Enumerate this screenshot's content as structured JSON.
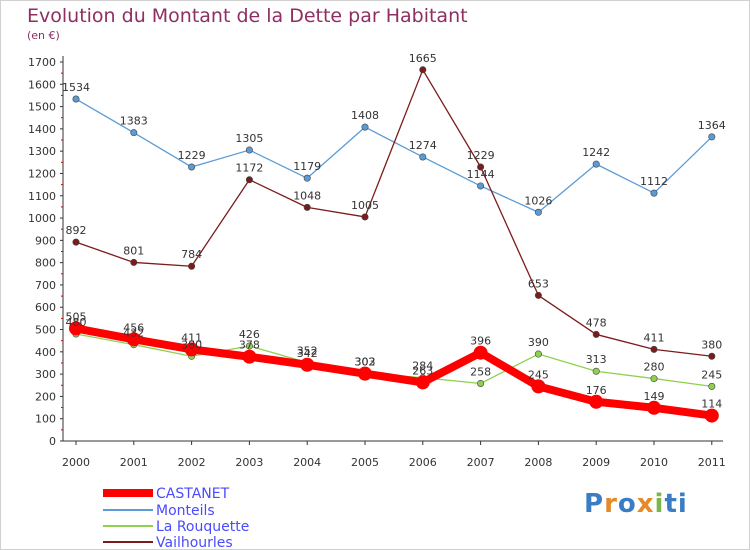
{
  "title": "Evolution du Montant de la Dette par Habitant",
  "subtitle": "(en €)",
  "logo": "Proxiti",
  "chart_data": {
    "type": "line",
    "title": "Evolution du Montant de la Dette par Habitant",
    "ylabel": "(en €)",
    "x": [
      "2000",
      "2001",
      "2002",
      "2003",
      "2004",
      "2005",
      "2006",
      "2007",
      "2008",
      "2009",
      "2010",
      "2011"
    ],
    "ylim": [
      0,
      1700
    ],
    "yticks": [
      0,
      100,
      200,
      300,
      400,
      500,
      600,
      700,
      800,
      900,
      1000,
      1100,
      1200,
      1300,
      1400,
      1500,
      1600,
      1700
    ],
    "grid": false,
    "legend_position": "bottom-left",
    "series": [
      {
        "name": "CASTANET",
        "color": "#ff0000",
        "values": [
          505,
          456,
          411,
          378,
          342,
          302,
          263,
          396,
          245,
          176,
          149,
          114
        ]
      },
      {
        "name": "Monteils",
        "color": "#5b9bd5",
        "values": [
          1534,
          1383,
          1229,
          1305,
          1179,
          1408,
          1274,
          1144,
          1026,
          1242,
          1112,
          1364
        ]
      },
      {
        "name": "La Rouquette",
        "color": "#8fd14f",
        "values": [
          480,
          432,
          380,
          426,
          352,
          303,
          284,
          258,
          390,
          313,
          280,
          245
        ]
      },
      {
        "name": "Vailhourles",
        "color": "#7b1c1c",
        "values": [
          892,
          801,
          784,
          1172,
          1048,
          1005,
          1665,
          1229,
          653,
          478,
          411,
          380
        ]
      }
    ]
  }
}
